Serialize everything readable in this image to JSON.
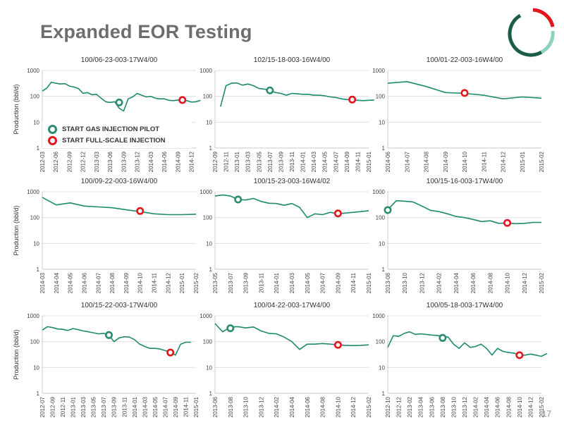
{
  "slide": {
    "title": "Expanded EOR Testing",
    "page_number": "17"
  },
  "legend": {
    "gas": "START GAS INJECTION PILOT",
    "full": "START FULL-SCALE INJECTION"
  },
  "colors": {
    "line": "#1e8a6e",
    "gas_marker": "#2a8c6f",
    "full_marker": "#e3161b",
    "title": "#6d6d6d",
    "logo_dark": "#1a5e4a",
    "logo_light": "#8fd1c0",
    "logo_red": "#e3161b"
  },
  "chart_data": [
    {
      "type": "line",
      "title": "100/06-23-003-17W4/00",
      "ylabel": "Production (bbl/d)",
      "yscale": "log",
      "ylim": [
        1,
        1000
      ],
      "yticks": [
        1,
        10,
        100,
        1000
      ],
      "categories": [
        "2012-03",
        "2012-06",
        "2012-09",
        "2012-12",
        "2013-03",
        "2013-06",
        "2013-09",
        "2013-12",
        "2014-03",
        "2014-06",
        "2014-09",
        "2014-12"
      ],
      "x_start": "2012-03",
      "x_end": "2015-01",
      "values": [
        [
          0,
          160
        ],
        [
          1,
          210
        ],
        [
          2,
          350
        ],
        [
          3,
          320
        ],
        [
          4,
          300
        ],
        [
          5,
          310
        ],
        [
          6,
          250
        ],
        [
          7,
          230
        ],
        [
          8,
          200
        ],
        [
          9,
          130
        ],
        [
          10,
          140
        ],
        [
          11,
          115
        ],
        [
          12,
          120
        ],
        [
          13,
          85
        ],
        [
          14,
          62
        ],
        [
          15,
          58
        ],
        [
          16,
          62
        ],
        [
          17,
          35
        ],
        [
          18,
          27
        ],
        [
          19,
          80
        ],
        [
          20,
          95
        ],
        [
          21,
          130
        ],
        [
          22,
          110
        ],
        [
          23,
          95
        ],
        [
          24,
          100
        ],
        [
          25,
          85
        ],
        [
          26,
          80
        ],
        [
          27,
          80
        ],
        [
          28,
          70
        ],
        [
          29,
          68
        ],
        [
          30,
          72
        ],
        [
          31,
          70
        ],
        [
          32,
          68
        ],
        [
          33,
          60
        ],
        [
          34,
          62
        ],
        [
          35,
          70
        ]
      ],
      "gas_start": [
        17,
        58
      ],
      "full_start": [
        31,
        72
      ]
    },
    {
      "type": "line",
      "title": "102/15-18-003-16W4/00",
      "ylabel": "",
      "yscale": "log",
      "ylim": [
        1,
        1000
      ],
      "yticks": [
        1,
        10,
        100,
        1000
      ],
      "categories": [
        "2012-09",
        "2012-11",
        "2013-01",
        "2013-03",
        "2013-05",
        "2013-07",
        "2013-09",
        "2013-11",
        "2014-01",
        "2014-03",
        "2014-05",
        "2014-07",
        "2014-09",
        "2014-11",
        "2015-01"
      ],
      "x_start": "2012-09",
      "x_end": "2015-01",
      "values": [
        [
          1,
          40
        ],
        [
          2,
          260
        ],
        [
          3,
          320
        ],
        [
          4,
          330
        ],
        [
          5,
          270
        ],
        [
          6,
          300
        ],
        [
          7,
          260
        ],
        [
          8,
          200
        ],
        [
          9,
          190
        ],
        [
          10,
          170
        ],
        [
          11,
          140
        ],
        [
          12,
          130
        ],
        [
          13,
          110
        ],
        [
          14,
          130
        ],
        [
          15,
          125
        ],
        [
          16,
          120
        ],
        [
          17,
          120
        ],
        [
          18,
          110
        ],
        [
          19,
          110
        ],
        [
          20,
          105
        ],
        [
          21,
          95
        ],
        [
          22,
          90
        ],
        [
          23,
          80
        ],
        [
          24,
          75
        ],
        [
          25,
          72
        ],
        [
          26,
          70
        ],
        [
          27,
          68
        ],
        [
          28,
          70
        ],
        [
          29,
          72
        ]
      ],
      "gas_start": [
        10,
        170
      ],
      "full_start": [
        25,
        75
      ]
    },
    {
      "type": "line",
      "title": "100/01-22-003-16W4/00",
      "ylabel": "",
      "yscale": "log",
      "ylim": [
        1,
        1000
      ],
      "yticks": [
        1,
        10,
        100,
        1000
      ],
      "categories": [
        "2014-06",
        "2014-07",
        "2014-08",
        "2014-09",
        "2014-10",
        "2014-11",
        "2014-12",
        "2015-01",
        "2015-02"
      ],
      "x_start": "2014-06",
      "x_end": "2015-02",
      "values": [
        [
          0,
          320
        ],
        [
          1,
          370
        ],
        [
          2,
          240
        ],
        [
          3,
          140
        ],
        [
          4,
          130
        ],
        [
          5,
          110
        ],
        [
          6,
          80
        ],
        [
          7,
          95
        ],
        [
          8,
          85
        ]
      ],
      "gas_start": null,
      "full_start": [
        4,
        135
      ]
    },
    {
      "type": "line",
      "title": "100/09-22-003-16W4/00",
      "ylabel": "Production (bbl/d)",
      "yscale": "log",
      "ylim": [
        1,
        1000
      ],
      "yticks": [
        1,
        10,
        100,
        1000
      ],
      "categories": [
        "2014-03",
        "2014-04",
        "2014-05",
        "2014-06",
        "2014-07",
        "2014-08",
        "2014-09",
        "2014-10",
        "2014-11",
        "2014-12",
        "2015-01",
        "2015-02"
      ],
      "x_start": "2014-03",
      "x_end": "2015-02",
      "values": [
        [
          0,
          600
        ],
        [
          1,
          310
        ],
        [
          2,
          370
        ],
        [
          3,
          280
        ],
        [
          4,
          260
        ],
        [
          5,
          240
        ],
        [
          6,
          200
        ],
        [
          7,
          170
        ],
        [
          8,
          140
        ],
        [
          9,
          130
        ],
        [
          10,
          130
        ],
        [
          11,
          135
        ]
      ],
      "gas_start": null,
      "full_start": [
        7,
        180
      ]
    },
    {
      "type": "line",
      "title": "100/15-23-003-16W4/02",
      "ylabel": "",
      "yscale": "log",
      "ylim": [
        1,
        1000
      ],
      "yticks": [
        1,
        10,
        100,
        1000
      ],
      "categories": [
        "2013-05",
        "2013-07",
        "2013-09",
        "2013-11",
        "2014-01",
        "2014-03",
        "2014-05",
        "2014-07",
        "2014-09",
        "2014-11",
        "2015-01"
      ],
      "x_start": "2013-05",
      "x_end": "2015-01",
      "values": [
        [
          0,
          680
        ],
        [
          1,
          750
        ],
        [
          2,
          680
        ],
        [
          3,
          500
        ],
        [
          4,
          480
        ],
        [
          5,
          550
        ],
        [
          6,
          420
        ],
        [
          7,
          360
        ],
        [
          8,
          350
        ],
        [
          9,
          300
        ],
        [
          10,
          350
        ],
        [
          11,
          250
        ],
        [
          12,
          100
        ],
        [
          13,
          140
        ],
        [
          14,
          130
        ],
        [
          15,
          160
        ],
        [
          16,
          140
        ],
        [
          17,
          150
        ],
        [
          18,
          160
        ],
        [
          19,
          170
        ],
        [
          20,
          185
        ]
      ],
      "gas_start": [
        3,
        500
      ],
      "full_start": [
        16,
        145
      ]
    },
    {
      "type": "line",
      "title": "100/15-16-003-17W4/00",
      "ylabel": "",
      "yscale": "log",
      "ylim": [
        1,
        1000
      ],
      "yticks": [
        1,
        10,
        100,
        1000
      ],
      "categories": [
        "2013-08",
        "2013-10",
        "2013-12",
        "2014-02",
        "2014-04",
        "2014-06",
        "2014-08",
        "2014-10",
        "2014-12",
        "2015-02"
      ],
      "x_start": "2013-08",
      "x_end": "2015-02",
      "values": [
        [
          0,
          200
        ],
        [
          1,
          450
        ],
        [
          2,
          430
        ],
        [
          3,
          400
        ],
        [
          4,
          280
        ],
        [
          5,
          190
        ],
        [
          6,
          170
        ],
        [
          7,
          140
        ],
        [
          8,
          110
        ],
        [
          9,
          100
        ],
        [
          10,
          85
        ],
        [
          11,
          70
        ],
        [
          12,
          75
        ],
        [
          13,
          60
        ],
        [
          14,
          62
        ],
        [
          15,
          58
        ],
        [
          16,
          60
        ],
        [
          17,
          65
        ],
        [
          18,
          65
        ]
      ],
      "gas_start": [
        0,
        195
      ],
      "full_start": [
        14,
        62
      ]
    },
    {
      "type": "line",
      "title": "100/15-22-003-17W4/00",
      "ylabel": "Production (bbl/d)",
      "yscale": "log",
      "ylim": [
        1,
        1000
      ],
      "yticks": [
        1,
        10,
        100,
        1000
      ],
      "categories": [
        "2012-07",
        "2012-09",
        "2012-11",
        "2013-01",
        "2013-03",
        "2013-05",
        "2013-07",
        "2013-09",
        "2013-11",
        "2014-01",
        "2014-03",
        "2014-05",
        "2014-07",
        "2014-09",
        "2014-11",
        "2015-01"
      ],
      "x_start": "2012-07",
      "x_end": "2015-01",
      "values": [
        [
          0,
          280
        ],
        [
          1,
          380
        ],
        [
          2,
          350
        ],
        [
          3,
          310
        ],
        [
          4,
          300
        ],
        [
          5,
          270
        ],
        [
          6,
          320
        ],
        [
          7,
          290
        ],
        [
          8,
          260
        ],
        [
          9,
          240
        ],
        [
          10,
          220
        ],
        [
          11,
          200
        ],
        [
          12,
          210
        ],
        [
          13,
          180
        ],
        [
          14,
          100
        ],
        [
          15,
          140
        ],
        [
          16,
          155
        ],
        [
          17,
          150
        ],
        [
          18,
          120
        ],
        [
          19,
          80
        ],
        [
          20,
          65
        ],
        [
          21,
          55
        ],
        [
          22,
          55
        ],
        [
          23,
          52
        ],
        [
          24,
          45
        ],
        [
          25,
          40
        ],
        [
          26,
          30
        ],
        [
          27,
          80
        ],
        [
          28,
          95
        ],
        [
          29,
          95
        ]
      ],
      "gas_start": [
        13,
        180
      ],
      "full_start": [
        25,
        38
      ]
    },
    {
      "type": "line",
      "title": "100/04-22-003-17W4/00",
      "ylabel": "",
      "yscale": "log",
      "ylim": [
        1,
        1000
      ],
      "yticks": [
        1,
        10,
        100,
        1000
      ],
      "categories": [
        "2013-06",
        "2013-08",
        "2013-10",
        "2013-12",
        "2014-02",
        "2014-04",
        "2014-06",
        "2014-08",
        "2014-10",
        "2014-12",
        "2015-02"
      ],
      "x_start": "2013-06",
      "x_end": "2015-02",
      "values": [
        [
          0,
          500
        ],
        [
          1,
          240
        ],
        [
          2,
          370
        ],
        [
          3,
          380
        ],
        [
          4,
          340
        ],
        [
          5,
          370
        ],
        [
          6,
          260
        ],
        [
          7,
          210
        ],
        [
          8,
          200
        ],
        [
          9,
          150
        ],
        [
          10,
          100
        ],
        [
          11,
          50
        ],
        [
          12,
          80
        ],
        [
          13,
          80
        ],
        [
          14,
          85
        ],
        [
          15,
          80
        ],
        [
          16,
          75
        ],
        [
          17,
          72
        ],
        [
          18,
          70
        ],
        [
          19,
          72
        ],
        [
          20,
          75
        ]
      ],
      "gas_start": [
        2,
        330
      ],
      "full_start": [
        16,
        75
      ]
    },
    {
      "type": "line",
      "title": "100/05-18-003-17W4/00",
      "ylabel": "",
      "yscale": "log",
      "ylim": [
        1,
        1000
      ],
      "yticks": [
        1,
        10,
        100,
        1000
      ],
      "categories": [
        "2012-10",
        "2012-12",
        "2013-02",
        "2013-04",
        "2013-06",
        "2013-08",
        "2013-10",
        "2013-12",
        "2014-02",
        "2014-04",
        "2014-06",
        "2014-08",
        "2014-10",
        "2014-12",
        "2015-02"
      ],
      "x_start": "2012-10",
      "x_end": "2015-02",
      "values": [
        [
          0,
          60
        ],
        [
          1,
          170
        ],
        [
          2,
          160
        ],
        [
          3,
          210
        ],
        [
          4,
          240
        ],
        [
          5,
          190
        ],
        [
          6,
          200
        ],
        [
          7,
          190
        ],
        [
          8,
          180
        ],
        [
          9,
          175
        ],
        [
          10,
          160
        ],
        [
          11,
          150
        ],
        [
          12,
          80
        ],
        [
          13,
          55
        ],
        [
          14,
          90
        ],
        [
          15,
          60
        ],
        [
          16,
          65
        ],
        [
          17,
          80
        ],
        [
          18,
          55
        ],
        [
          19,
          30
        ],
        [
          20,
          55
        ],
        [
          21,
          42
        ],
        [
          22,
          38
        ],
        [
          23,
          36
        ],
        [
          24,
          30
        ],
        [
          25,
          30
        ],
        [
          26,
          33
        ],
        [
          27,
          30
        ],
        [
          28,
          27
        ],
        [
          29,
          35
        ]
      ],
      "gas_start": [
        10,
        140
      ],
      "full_start": [
        24,
        30
      ]
    }
  ]
}
